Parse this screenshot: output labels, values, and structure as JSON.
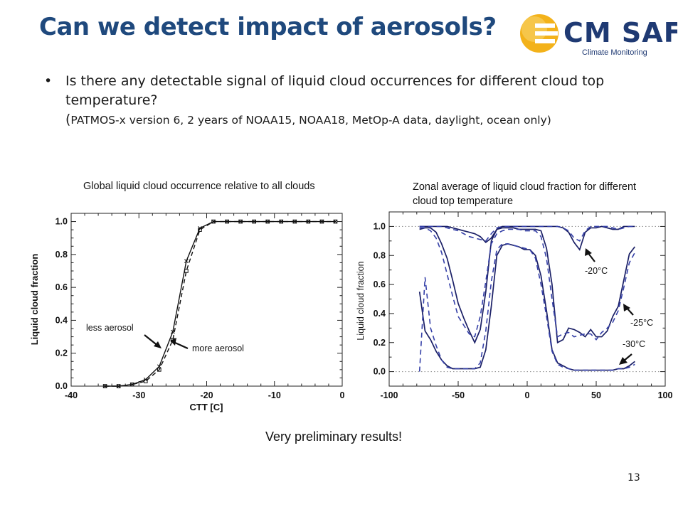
{
  "slide": {
    "title": "Can we detect impact of aerosols?",
    "bullet_main": "Is there any detectable signal of liquid cloud occurrences for different cloud top temperature?",
    "bullet_paren_open": "(",
    "bullet_sub": "PATMOS-x version 6, 2 years of NOAA15, NOAA18, MetOp-A data, daylight, ocean only)",
    "prelim": "Very preliminary results!",
    "page_number": "13"
  },
  "logo": {
    "text": "CM SAF",
    "subtext": "Climate Monitoring",
    "text_color": "#1f3a73",
    "sun_color": "#f3b21a"
  },
  "colors": {
    "navy": "#1a1f66",
    "dashed_blue": "#3540a8",
    "title_blue": "#1f497d"
  },
  "chart_data": [
    {
      "type": "line",
      "title": "Global liquid cloud occurrence relative to all clouds",
      "xlabel": "CTT [C]",
      "ylabel": "Liquid cloud fraction",
      "xlim": [
        -40,
        0
      ],
      "ylim": [
        0,
        1.05
      ],
      "xticks": [
        "-40",
        "-30",
        "-20",
        "-10",
        "0"
      ],
      "yticks": [
        "0.0",
        "0.2",
        "0.4",
        "0.6",
        "0.8",
        "1.0"
      ],
      "series": [
        {
          "name": "less aerosol",
          "marker": "x",
          "x": [
            -35,
            -33,
            -31,
            -29,
            -27,
            -25,
            -23,
            -21,
            -19,
            -17,
            -15,
            -13,
            -11,
            -9,
            -7,
            -5,
            -3,
            -1
          ],
          "values": [
            0.0,
            0.0,
            0.01,
            0.04,
            0.12,
            0.33,
            0.76,
            0.96,
            1.0,
            1.0,
            1.0,
            1.0,
            1.0,
            1.0,
            1.0,
            1.0,
            1.0,
            1.0
          ]
        },
        {
          "name": "more aerosol",
          "marker": "square",
          "x": [
            -35,
            -33,
            -31,
            -29,
            -27,
            -25,
            -23,
            -21,
            -19,
            -17,
            -15,
            -13,
            -11,
            -9,
            -7,
            -5,
            -3,
            -1
          ],
          "values": [
            0.0,
            0.0,
            0.01,
            0.03,
            0.1,
            0.28,
            0.7,
            0.95,
            1.0,
            1.0,
            1.0,
            1.0,
            1.0,
            1.0,
            1.0,
            1.0,
            1.0,
            1.0
          ]
        }
      ],
      "annotations": [
        "less aerosol",
        "more aerosol"
      ]
    },
    {
      "type": "line",
      "title": "Zonal average of liquid cloud fraction for different cloud top temperature",
      "xlabel": "",
      "ylabel": "Liquid cloud fraction",
      "xlim": [
        -100,
        100
      ],
      "ylim": [
        -0.1,
        1.1
      ],
      "xticks": [
        "-100",
        "-50",
        "0",
        "50",
        "100"
      ],
      "yticks": [
        "0.0",
        "0.2",
        "0.4",
        "0.6",
        "0.8",
        "1.0"
      ],
      "reference_lines": [
        0.0,
        1.0
      ],
      "x": [
        -78,
        -74,
        -70,
        -66,
        -62,
        -58,
        -54,
        -50,
        -46,
        -42,
        -38,
        -34,
        -30,
        -26,
        -22,
        -18,
        -14,
        -10,
        -6,
        -2,
        2,
        6,
        10,
        14,
        18,
        22,
        26,
        30,
        34,
        38,
        42,
        46,
        50,
        54,
        58,
        62,
        66,
        70,
        74,
        78
      ],
      "series": [
        {
          "name": "-20°C solid",
          "label": "-20°C",
          "style": "solid",
          "values": [
            1.0,
            1.0,
            1.0,
            1.0,
            1.0,
            1.0,
            0.99,
            0.98,
            0.97,
            0.96,
            0.95,
            0.93,
            0.89,
            0.92,
            0.98,
            1.0,
            1.0,
            1.0,
            1.0,
            1.0,
            1.0,
            1.0,
            1.0,
            1.0,
            1.0,
            1.0,
            0.99,
            0.96,
            0.89,
            0.84,
            0.96,
            0.99,
            0.99,
            1.0,
            0.99,
            0.98,
            0.98,
            1.0,
            1.0,
            1.0
          ]
        },
        {
          "name": "-20°C dashed",
          "label": "",
          "style": "dashed",
          "values": [
            1.0,
            1.0,
            1.0,
            1.0,
            1.0,
            0.99,
            0.98,
            0.97,
            0.95,
            0.93,
            0.92,
            0.91,
            0.9,
            0.95,
            0.99,
            1.0,
            1.0,
            1.0,
            1.0,
            1.0,
            1.0,
            1.0,
            1.0,
            1.0,
            1.0,
            1.0,
            0.99,
            0.97,
            0.92,
            0.9,
            0.97,
            1.0,
            1.0,
            1.0,
            1.0,
            0.99,
            0.98,
            0.99,
            1.0,
            1.0
          ]
        },
        {
          "name": "-25°C solid",
          "label": "-25°C",
          "style": "solid",
          "values": [
            0.98,
            0.99,
            0.99,
            0.96,
            0.88,
            0.78,
            0.63,
            0.47,
            0.37,
            0.28,
            0.2,
            0.29,
            0.55,
            0.9,
            0.98,
            0.99,
            0.99,
            0.99,
            0.98,
            0.98,
            0.98,
            0.98,
            0.97,
            0.85,
            0.6,
            0.2,
            0.22,
            0.3,
            0.29,
            0.27,
            0.24,
            0.29,
            0.24,
            0.24,
            0.28,
            0.38,
            0.45,
            0.63,
            0.81,
            0.86
          ]
        },
        {
          "name": "-25°C dashed",
          "label": "",
          "style": "dashed",
          "values": [
            0.99,
            0.99,
            0.97,
            0.92,
            0.82,
            0.67,
            0.52,
            0.38,
            0.32,
            0.26,
            0.24,
            0.38,
            0.62,
            0.88,
            0.95,
            0.97,
            0.98,
            0.98,
            0.98,
            0.97,
            0.97,
            0.97,
            0.93,
            0.78,
            0.5,
            0.24,
            0.26,
            0.27,
            0.24,
            0.25,
            0.26,
            0.26,
            0.22,
            0.27,
            0.3,
            0.34,
            0.42,
            0.58,
            0.75,
            0.82
          ]
        },
        {
          "name": "-30°C solid",
          "label": "-30°C",
          "style": "solid",
          "values": [
            0.55,
            0.28,
            0.22,
            0.14,
            0.08,
            0.04,
            0.02,
            0.02,
            0.02,
            0.02,
            0.02,
            0.03,
            0.15,
            0.45,
            0.8,
            0.87,
            0.88,
            0.87,
            0.86,
            0.84,
            0.84,
            0.8,
            0.66,
            0.42,
            0.15,
            0.06,
            0.04,
            0.02,
            0.01,
            0.01,
            0.01,
            0.01,
            0.01,
            0.01,
            0.01,
            0.01,
            0.02,
            0.02,
            0.04,
            0.07
          ]
        },
        {
          "name": "-30°C dashed",
          "label": "",
          "style": "dashed",
          "values": [
            0.0,
            0.65,
            0.3,
            0.18,
            0.08,
            0.03,
            0.02,
            0.02,
            0.02,
            0.02,
            0.02,
            0.06,
            0.28,
            0.62,
            0.84,
            0.88,
            0.88,
            0.87,
            0.86,
            0.85,
            0.84,
            0.78,
            0.6,
            0.38,
            0.14,
            0.05,
            0.03,
            0.02,
            0.01,
            0.01,
            0.01,
            0.01,
            0.01,
            0.01,
            0.01,
            0.01,
            0.02,
            0.02,
            0.03,
            0.05
          ]
        }
      ]
    }
  ]
}
